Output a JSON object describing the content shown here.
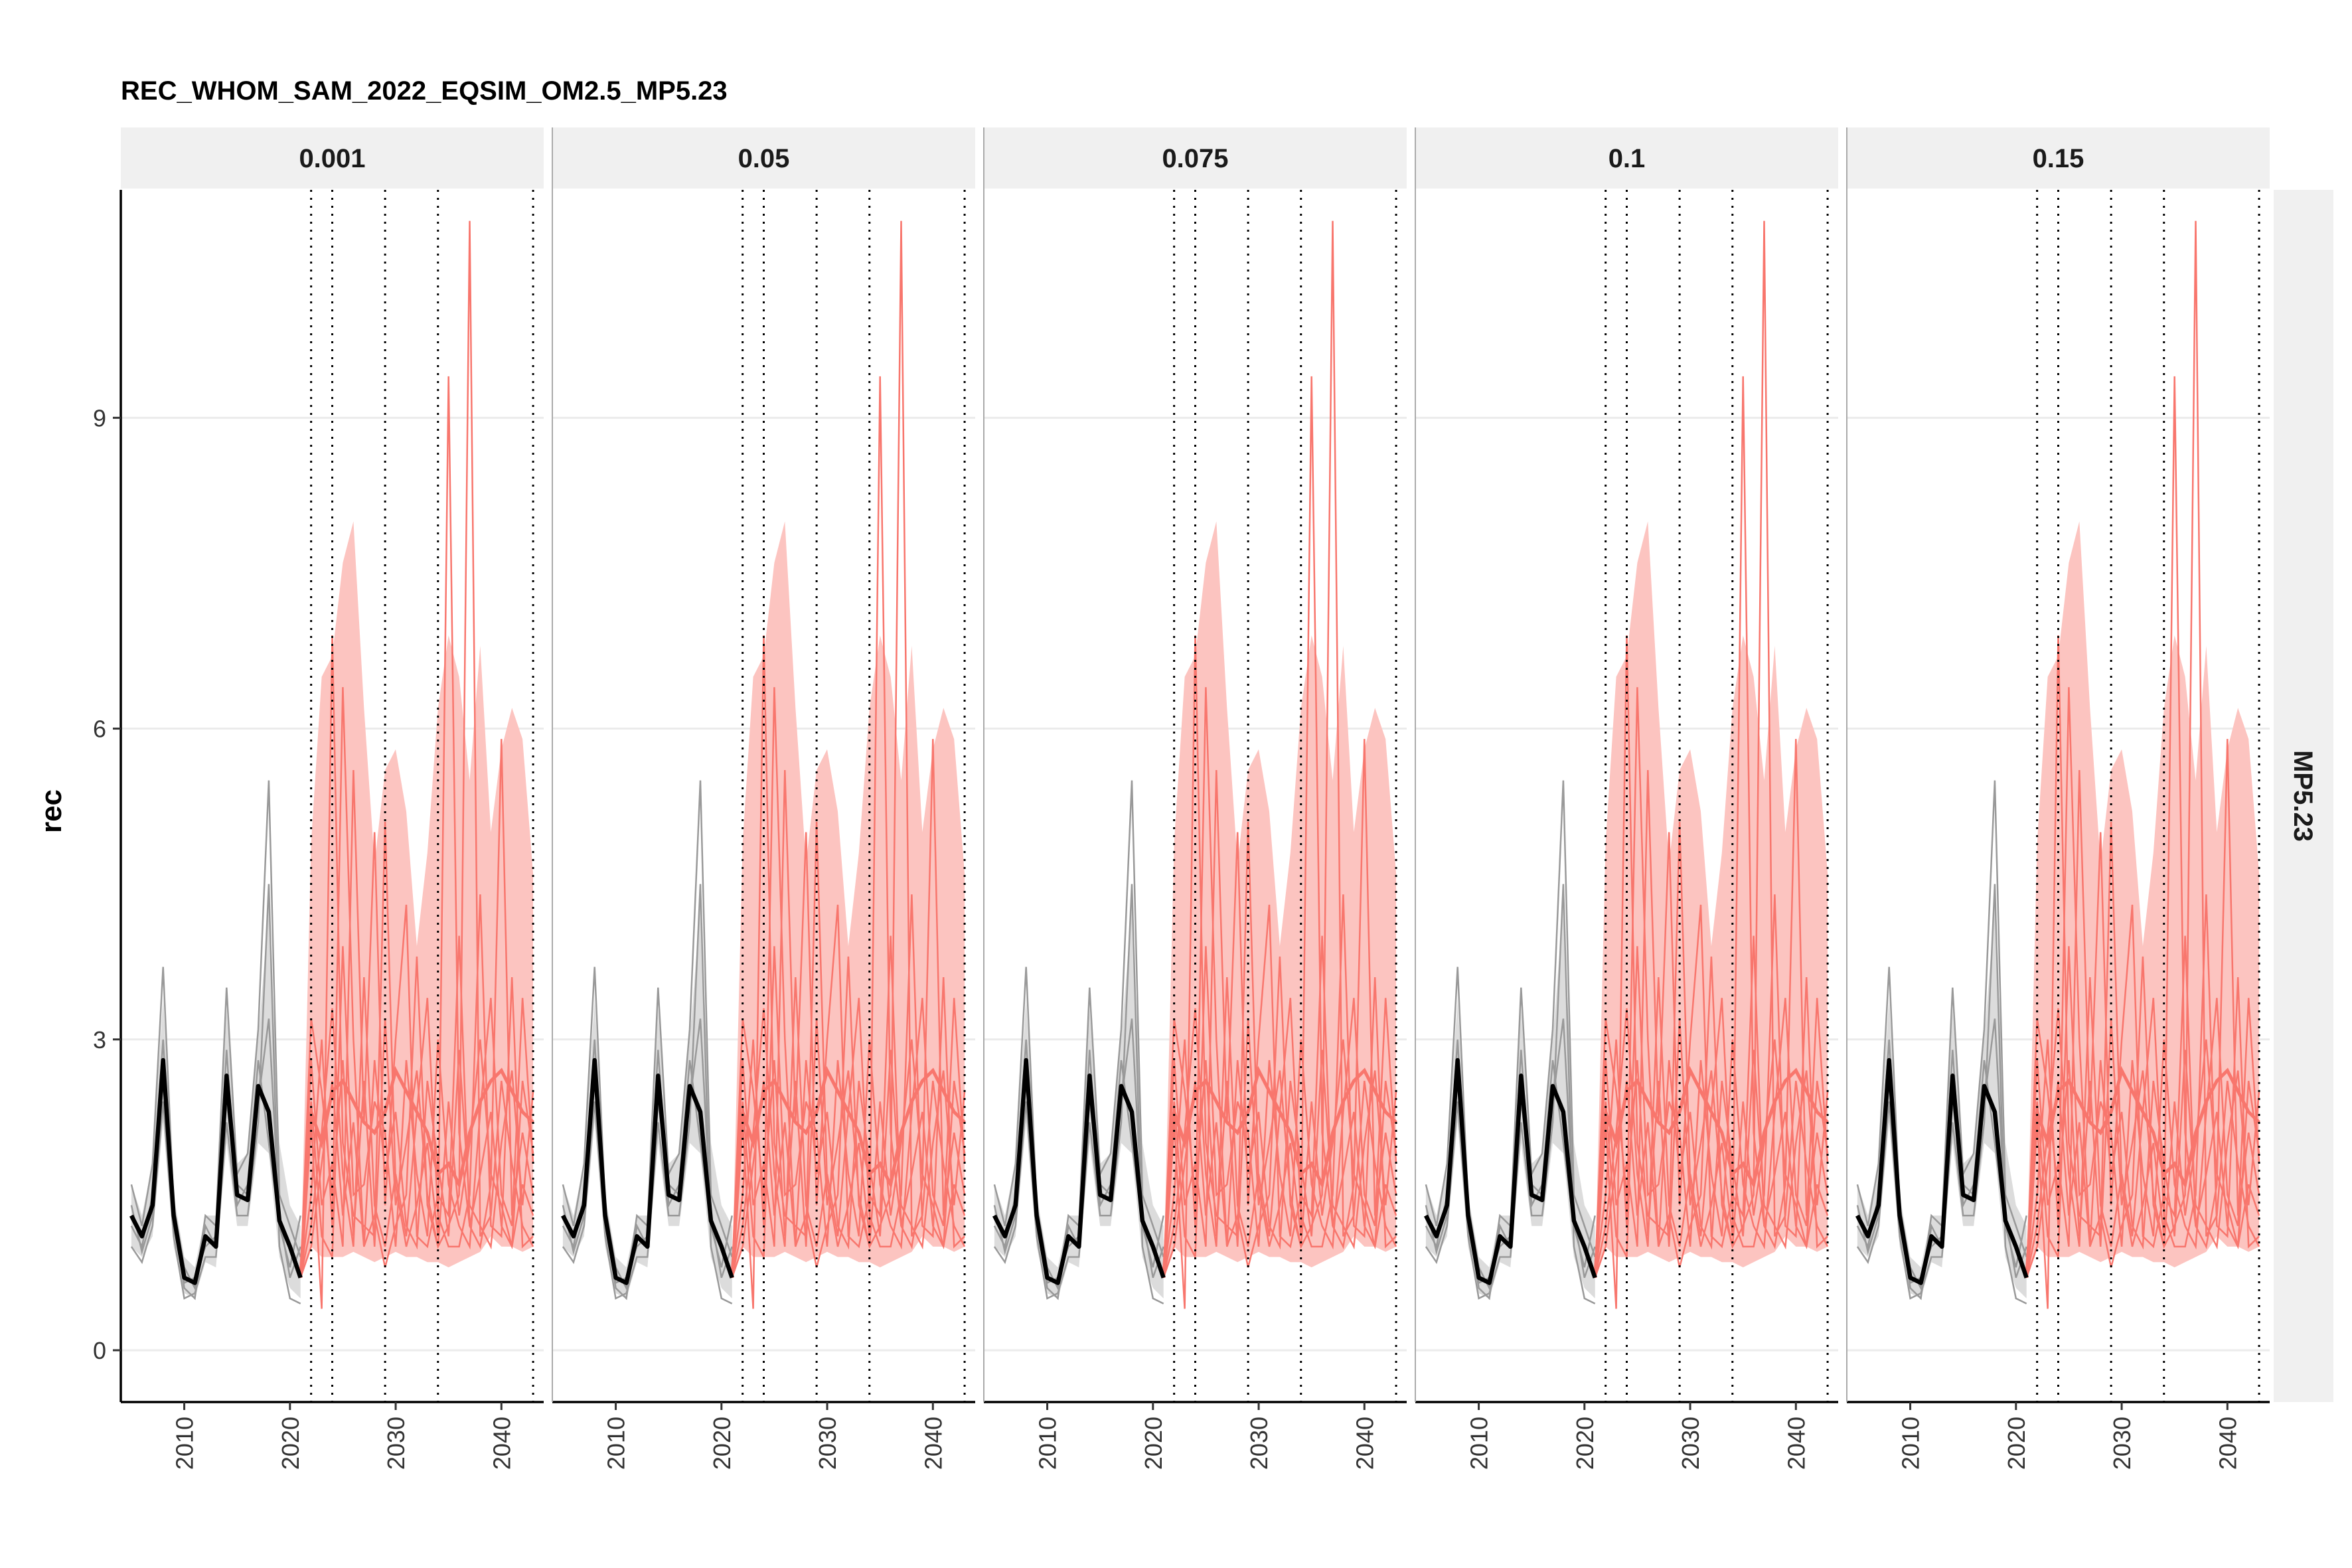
{
  "chart_data": {
    "type": "line",
    "title": "REC_WHOM_SAM_2022_EQSIM_OM2.5_MP5.23",
    "xlabel": "",
    "ylabel": "rec",
    "xlim": [
      2004,
      2044
    ],
    "ylim": [
      -0.5,
      11.2
    ],
    "x_ticks": [
      2010,
      2020,
      2030,
      2040
    ],
    "y_ticks": [
      0,
      3,
      6,
      9
    ],
    "grid": "horizontal",
    "facet_columns": [
      "0.001",
      "0.05",
      "0.075",
      "0.1",
      "0.15"
    ],
    "facet_row": "MP5.23",
    "vlines": [
      2022,
      2024,
      2029,
      2034,
      2043
    ],
    "colors": {
      "historic": "#000000",
      "historic_band": "#dcdcdc",
      "historic_iter": "#999999",
      "projection": "#f8766d",
      "projection_band": "#fcc4c0"
    },
    "series": [
      {
        "role": "historic_median",
        "x": [
          2005,
          2006,
          2007,
          2008,
          2009,
          2010,
          2011,
          2012,
          2013,
          2014,
          2015,
          2016,
          2017,
          2018,
          2019,
          2020,
          2021
        ],
        "values": [
          1.3,
          1.1,
          1.4,
          2.8,
          1.3,
          0.7,
          0.65,
          1.1,
          1.0,
          2.65,
          1.5,
          1.45,
          2.55,
          2.3,
          1.25,
          1.0,
          0.7
        ]
      },
      {
        "role": "historic_band",
        "x": [
          2005,
          2006,
          2007,
          2008,
          2009,
          2010,
          2011,
          2012,
          2013,
          2014,
          2015,
          2016,
          2017,
          2018,
          2019,
          2020,
          2021
        ],
        "lower": [
          1.0,
          0.9,
          1.1,
          2.2,
          1.0,
          0.55,
          0.5,
          0.85,
          0.8,
          2.0,
          1.2,
          1.2,
          2.0,
          1.9,
          0.9,
          0.6,
          0.5
        ],
        "upper": [
          1.6,
          1.3,
          1.8,
          3.4,
          1.5,
          0.9,
          0.8,
          1.3,
          1.3,
          3.3,
          1.8,
          1.9,
          3.0,
          4.3,
          2.0,
          1.4,
          1.2
        ]
      },
      {
        "role": "historic_iter",
        "x": [
          2005,
          2006,
          2007,
          2008,
          2009,
          2010,
          2011,
          2012,
          2013,
          2014,
          2015,
          2016,
          2017,
          2018,
          2019,
          2020,
          2021
        ],
        "values": [
          1.6,
          1.2,
          1.8,
          3.7,
          1.4,
          0.8,
          0.6,
          1.3,
          1.2,
          3.5,
          1.7,
          1.9,
          3.1,
          5.5,
          1.5,
          1.2,
          0.9
        ]
      },
      {
        "role": "historic_iter",
        "x": [
          2005,
          2006,
          2007,
          2008,
          2009,
          2010,
          2011,
          2012,
          2013,
          2014,
          2015,
          2016,
          2017,
          2018,
          2019,
          2020,
          2021
        ],
        "values": [
          1.0,
          0.85,
          1.2,
          2.4,
          1.1,
          0.5,
          0.55,
          0.9,
          0.9,
          2.2,
          1.3,
          1.3,
          2.2,
          4.5,
          1.0,
          0.5,
          0.45
        ]
      },
      {
        "role": "historic_iter",
        "x": [
          2005,
          2006,
          2007,
          2008,
          2009,
          2010,
          2011,
          2012,
          2013,
          2014,
          2015,
          2016,
          2017,
          2018,
          2019,
          2020,
          2021
        ],
        "values": [
          1.2,
          1.0,
          1.5,
          3.0,
          1.2,
          0.65,
          0.7,
          1.0,
          1.1,
          2.9,
          1.4,
          1.6,
          2.8,
          2.0,
          1.2,
          0.8,
          1.3
        ]
      },
      {
        "role": "historic_iter",
        "x": [
          2005,
          2006,
          2007,
          2008,
          2009,
          2010,
          2011,
          2012,
          2013,
          2014,
          2015,
          2016,
          2017,
          2018,
          2019,
          2020,
          2021
        ],
        "values": [
          1.4,
          0.95,
          1.3,
          2.6,
          1.3,
          0.6,
          0.5,
          1.2,
          1.0,
          2.4,
          1.6,
          1.5,
          2.4,
          3.2,
          1.3,
          0.7,
          1.0
        ]
      },
      {
        "role": "projection_median",
        "x": [
          2021,
          2022,
          2023,
          2024,
          2025,
          2026,
          2027,
          2028,
          2029,
          2030,
          2031,
          2032,
          2033,
          2034,
          2035,
          2036,
          2037,
          2038,
          2039,
          2040,
          2041,
          2042,
          2043
        ],
        "values": [
          0.7,
          2.3,
          2.0,
          2.5,
          2.6,
          2.4,
          2.2,
          2.1,
          2.3,
          2.7,
          2.5,
          2.3,
          2.1,
          1.7,
          1.8,
          1.6,
          2.1,
          2.4,
          2.6,
          2.7,
          2.5,
          2.3,
          2.2
        ]
      },
      {
        "role": "projection_band",
        "x": [
          2021,
          2022,
          2023,
          2024,
          2025,
          2026,
          2027,
          2028,
          2029,
          2030,
          2031,
          2032,
          2033,
          2034,
          2035,
          2036,
          2037,
          2038,
          2039,
          2040,
          2041,
          2042,
          2043
        ],
        "lower": [
          0.7,
          1.0,
          0.9,
          0.9,
          0.9,
          0.95,
          0.9,
          0.85,
          0.9,
          0.95,
          0.9,
          0.9,
          0.85,
          0.85,
          0.8,
          0.85,
          0.9,
          0.95,
          1.1,
          1.0,
          1.0,
          0.95,
          1.0
        ],
        "upper": [
          0.7,
          4.9,
          6.5,
          6.7,
          7.6,
          8.0,
          6.2,
          4.7,
          5.6,
          5.8,
          5.2,
          3.9,
          4.8,
          6.2,
          6.9,
          6.5,
          5.5,
          6.8,
          5.0,
          5.8,
          6.2,
          5.9,
          4.6
        ]
      },
      {
        "role": "projection_iter",
        "x": [
          2021,
          2022,
          2023,
          2024,
          2025,
          2026,
          2027,
          2028,
          2029,
          2030,
          2031,
          2032,
          2033,
          2034,
          2035,
          2036,
          2037,
          2038,
          2039,
          2040,
          2041,
          2042,
          2043
        ],
        "values": [
          0.7,
          2.2,
          0.4,
          6.9,
          2.0,
          1.3,
          1.2,
          1.1,
          5.1,
          1.6,
          1.0,
          1.4,
          2.0,
          1.1,
          9.4,
          2.1,
          1.2,
          1.7,
          2.3,
          1.2,
          1.0,
          1.6,
          1.3
        ]
      },
      {
        "role": "projection_iter",
        "x": [
          2021,
          2022,
          2023,
          2024,
          2025,
          2026,
          2027,
          2028,
          2029,
          2030,
          2031,
          2032,
          2033,
          2034,
          2035,
          2036,
          2037,
          2038,
          2039,
          2040,
          2041,
          2042,
          2043
        ],
        "values": [
          0.7,
          1.5,
          3.0,
          1.2,
          6.4,
          3.0,
          1.0,
          1.3,
          0.8,
          1.2,
          1.5,
          3.8,
          1.4,
          1.0,
          1.2,
          1.5,
          10.9,
          1.1,
          1.3,
          2.6,
          1.8,
          1.2,
          1.0
        ]
      },
      {
        "role": "projection_iter",
        "x": [
          2021,
          2022,
          2023,
          2024,
          2025,
          2026,
          2027,
          2028,
          2029,
          2030,
          2031,
          2032,
          2033,
          2034,
          2035,
          2036,
          2037,
          2038,
          2039,
          2040,
          2041,
          2042,
          2043
        ],
        "values": [
          0.7,
          2.8,
          1.4,
          1.8,
          1.0,
          5.6,
          2.2,
          5.0,
          1.4,
          3.0,
          4.3,
          1.1,
          1.0,
          1.5,
          1.3,
          4.0,
          1.2,
          1.0,
          1.6,
          5.9,
          1.3,
          2.1,
          1.5
        ]
      },
      {
        "role": "projection_iter",
        "x": [
          2021,
          2022,
          2023,
          2024,
          2025,
          2026,
          2027,
          2028,
          2029,
          2030,
          2031,
          2032,
          2033,
          2034,
          2035,
          2036,
          2037,
          2038,
          2039,
          2040,
          2041,
          2042,
          2043
        ],
        "values": [
          0.7,
          1.2,
          2.1,
          3.3,
          1.7,
          1.0,
          3.6,
          1.4,
          1.0,
          1.7,
          1.1,
          2.3,
          3.4,
          1.3,
          1.0,
          1.0,
          1.5,
          4.4,
          1.2,
          1.1,
          3.6,
          1.0,
          1.1
        ]
      },
      {
        "role": "projection_iter",
        "x": [
          2021,
          2022,
          2023,
          2024,
          2025,
          2026,
          2027,
          2028,
          2029,
          2030,
          2031,
          2032,
          2033,
          2034,
          2035,
          2036,
          2037,
          2038,
          2039,
          2040,
          2041,
          2042,
          2043
        ],
        "values": [
          0.7,
          2.4,
          1.1,
          0.9,
          3.9,
          1.5,
          1.6,
          2.4,
          2.1,
          1.0,
          2.8,
          1.7,
          1.1,
          3.0,
          1.6,
          1.2,
          1.0,
          2.3,
          3.4,
          1.5,
          1.2,
          3.4,
          1.8
        ]
      },
      {
        "role": "projection_iter",
        "x": [
          2021,
          2022,
          2023,
          2024,
          2025,
          2026,
          2027,
          2028,
          2029,
          2030,
          2031,
          2032,
          2033,
          2034,
          2035,
          2036,
          2037,
          2038,
          2039,
          2040,
          2041,
          2042,
          2043
        ],
        "values": [
          0.7,
          1.0,
          1.8,
          2.6,
          1.3,
          2.2,
          1.0,
          2.8,
          1.7,
          2.3,
          1.2,
          1.0,
          2.6,
          1.8,
          1.1,
          2.9,
          1.4,
          1.2,
          1.0,
          2.0,
          2.7,
          1.4,
          2.5
        ]
      },
      {
        "role": "projection_iter",
        "x": [
          2021,
          2022,
          2023,
          2024,
          2025,
          2026,
          2027,
          2028,
          2029,
          2030,
          2031,
          2032,
          2033,
          2034,
          2035,
          2036,
          2037,
          2038,
          2039,
          2040,
          2041,
          2042,
          2043
        ],
        "values": [
          0.7,
          3.2,
          2.5,
          1.5,
          2.8,
          1.1,
          2.6,
          1.0,
          3.2,
          1.4,
          2.0,
          2.7,
          1.5,
          1.0,
          2.4,
          1.3,
          2.0,
          3.0,
          1.7,
          1.4,
          1.0,
          2.6,
          1.9
        ]
      }
    ]
  }
}
